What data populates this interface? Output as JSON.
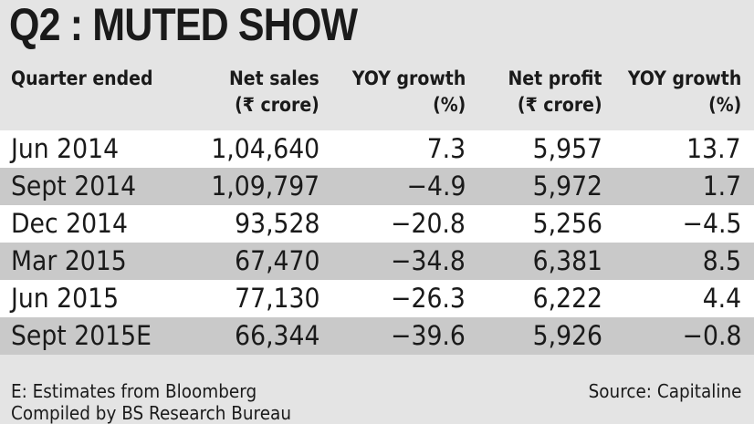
{
  "title": "Q2 : MUTED SHOW",
  "chart_data": {
    "type": "table",
    "title": "Q2 : MUTED SHOW",
    "columns": [
      [
        "Quarter ended",
        ""
      ],
      [
        "Net sales",
        "(₹ crore)"
      ],
      [
        "YOY growth",
        "(%)"
      ],
      [
        "Net profit",
        "(₹ crore)"
      ],
      [
        "YOY growth",
        "(%)"
      ]
    ],
    "rows": [
      [
        "Jun 2014",
        "1,04,640",
        "7.3",
        "5,957",
        "13.7"
      ],
      [
        "Sept 2014",
        "1,09,797",
        "−4.9",
        "5,972",
        "1.7"
      ],
      [
        "Dec 2014",
        "93,528",
        "−20.8",
        "5,256",
        "−4.5"
      ],
      [
        "Mar 2015",
        "67,470",
        "−34.8",
        "6,381",
        "8.5"
      ],
      [
        "Jun 2015",
        "77,130",
        "−26.3",
        "6,222",
        "4.4"
      ],
      [
        "Sept 2015E",
        "66,344",
        "−39.6",
        "5,926",
        "−0.8"
      ]
    ]
  },
  "footer": {
    "note": "E: Estimates from Bloomberg",
    "compiled": "Compiled by BS Research Bureau",
    "source": "Source: Capitaline"
  },
  "colors": {
    "background": "#e4e4e4",
    "row_light": "#ffffff",
    "row_dark": "#c9c9c9",
    "text": "#1a1a1a"
  }
}
